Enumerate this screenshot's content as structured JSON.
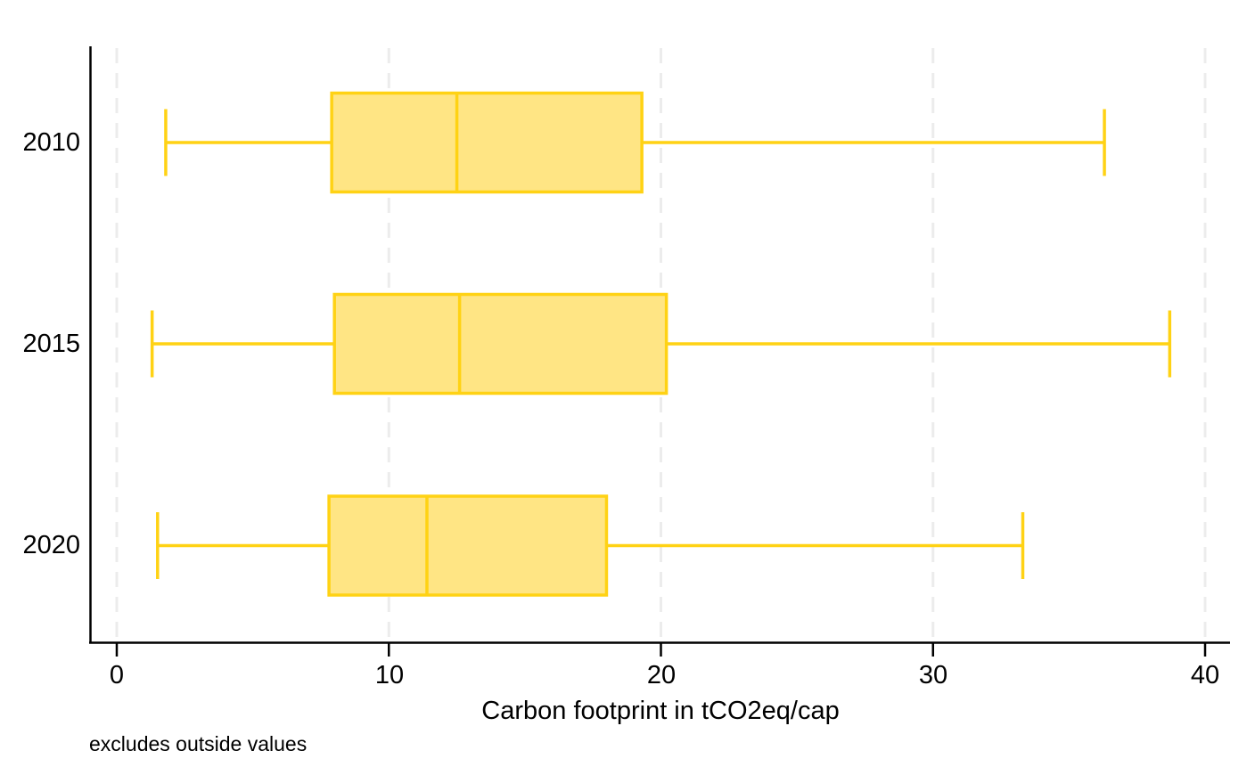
{
  "chart_data": {
    "type": "boxplot",
    "orientation": "horizontal",
    "xlabel": "Carbon footprint in tCO2eq/cap",
    "note": "excludes outside values",
    "categories": [
      "2010",
      "2015",
      "2020"
    ],
    "x_ticks": [
      0,
      10,
      20,
      30,
      40
    ],
    "x_tick_labels": [
      "0",
      "10",
      "20",
      "30",
      "40"
    ],
    "xlim": [
      0,
      40
    ],
    "grid": "vertical-dashed",
    "legend": "none",
    "series": [
      {
        "category": "2010",
        "whisker_low": 1.8,
        "q1": 7.9,
        "median": 12.5,
        "q3": 19.3,
        "whisker_high": 36.3
      },
      {
        "category": "2015",
        "whisker_low": 1.3,
        "q1": 8.0,
        "median": 12.6,
        "q3": 20.2,
        "whisker_high": 38.7
      },
      {
        "category": "2020",
        "whisker_low": 1.5,
        "q1": 7.8,
        "median": 11.4,
        "q3": 18.0,
        "whisker_high": 33.3
      }
    ],
    "colors": {
      "box_fill": "#FFE584",
      "box_stroke": "#FFD214",
      "axis": "#000000",
      "gridline": "#ECECEC",
      "text": "#000000",
      "background": "#FFFFFF"
    }
  }
}
